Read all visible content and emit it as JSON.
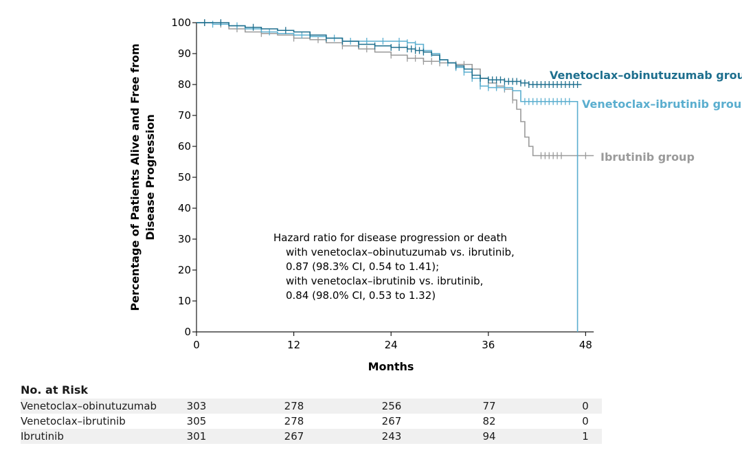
{
  "chart_data": {
    "type": "line",
    "subtype": "kaplan-meier",
    "ylabel_lines": [
      "Percentage of Patients Alive and Free from",
      "Disease Progression"
    ],
    "xlabel": "Months",
    "xlim": [
      0,
      49
    ],
    "ylim": [
      0,
      100
    ],
    "xticks": [
      0,
      12,
      24,
      36,
      48
    ],
    "yticks": [
      0,
      10,
      20,
      30,
      40,
      50,
      60,
      70,
      80,
      90,
      100
    ],
    "grid": false,
    "annotation_lines": [
      "Hazard ratio for disease progression or death",
      "with venetoclax–obinutuzumab vs. ibrutinib,",
      "0.87 (98.3% CI, 0.54 to 1.41);",
      "with venetoclax–ibrutinib vs. ibrutinib,",
      "0.84 (98.0% CI, 0.53 to 1.32)"
    ],
    "series": [
      {
        "name": "Venetoclax–obinutuzumab group",
        "color": "#1e6f8e",
        "x": [
          0,
          2,
          4,
          6,
          8,
          10,
          12,
          14,
          16,
          18,
          20,
          22,
          24,
          26,
          27,
          28,
          29,
          30,
          31,
          32,
          33,
          34,
          35,
          36,
          38,
          40,
          41,
          42,
          44,
          46,
          47.5
        ],
        "y": [
          100,
          100,
          99,
          98.5,
          98,
          97.5,
          97,
          96,
          95,
          94,
          93,
          92.5,
          92,
          91.5,
          91,
          90.5,
          89.5,
          88,
          87,
          86,
          85,
          83,
          82,
          81.5,
          81,
          80.5,
          80,
          80,
          80,
          80,
          80
        ],
        "censor_x": [
          1,
          3,
          7,
          11,
          14,
          16,
          18,
          20,
          22,
          24,
          25,
          26,
          26.5,
          27,
          27.5,
          28,
          32,
          34,
          35,
          36,
          36.5,
          37,
          37.5,
          38,
          38.5,
          39,
          39.5,
          40,
          40.5,
          41,
          41.5,
          42,
          42.5,
          43,
          43.5,
          44,
          44.5,
          45,
          45.5,
          46,
          46.5,
          47
        ]
      },
      {
        "name": "Venetoclax–ibrutinib group",
        "color": "#5aaecf",
        "x": [
          0,
          2,
          4,
          6,
          8,
          10,
          12,
          14,
          16,
          18,
          20,
          22,
          24,
          26,
          27,
          28,
          29,
          30,
          31,
          32,
          33,
          34,
          35,
          36,
          37,
          38,
          39,
          40,
          42,
          44,
          46,
          47,
          47
        ],
        "y": [
          100,
          99.5,
          99,
          98,
          97,
          96.5,
          96,
          95.5,
          95,
          94,
          94,
          94,
          94,
          93.5,
          93,
          91,
          90,
          88,
          87,
          85.5,
          84,
          82,
          79.5,
          79,
          79,
          79,
          78,
          74.5,
          74.5,
          74.5,
          74.5,
          74.5,
          0
        ],
        "censor_x": [
          2,
          5,
          9,
          13,
          17,
          19,
          21,
          23,
          25,
          26,
          27,
          28,
          29,
          30,
          31,
          32,
          33,
          34,
          35,
          36,
          37,
          38,
          40.5,
          41,
          41.5,
          42,
          42.5,
          43,
          43.5,
          44,
          44.5,
          45,
          45.5,
          46
        ]
      },
      {
        "name": "Ibrutinib group",
        "color": "#9a9a9a",
        "x": [
          0,
          2,
          4,
          6,
          8,
          10,
          12,
          14,
          16,
          18,
          20,
          22,
          24,
          26,
          28,
          30,
          32,
          34,
          35,
          36,
          37,
          38,
          39,
          39.5,
          40,
          40.5,
          41,
          41.5,
          42,
          44,
          46,
          48,
          49
        ],
        "y": [
          100,
          99.5,
          98,
          97,
          96.5,
          96,
          95,
          94.5,
          93.5,
          92.5,
          91.5,
          90.5,
          89.5,
          88.5,
          87.5,
          87,
          86.5,
          85,
          82,
          80.5,
          79.5,
          78.5,
          75,
          72,
          68,
          63,
          60,
          57,
          57,
          57,
          57,
          57,
          57
        ],
        "censor_x": [
          1,
          3,
          5,
          8,
          12,
          15,
          18,
          21,
          24,
          26,
          27,
          28,
          29,
          30,
          31,
          32,
          33,
          34,
          36,
          37,
          38,
          39,
          42.5,
          43,
          43.5,
          44,
          44.5,
          45,
          48
        ]
      }
    ]
  },
  "risk_table": {
    "title": "No. at Risk",
    "rows": [
      {
        "label": "Venetoclax–obinutuzumab",
        "values": [
          "303",
          "278",
          "256",
          "77",
          "0"
        ]
      },
      {
        "label": "Venetoclax–ibrutinib",
        "values": [
          "305",
          "278",
          "267",
          "82",
          "0"
        ]
      },
      {
        "label": "Ibrutinib",
        "values": [
          "301",
          "267",
          "243",
          "94",
          "1"
        ]
      }
    ]
  }
}
